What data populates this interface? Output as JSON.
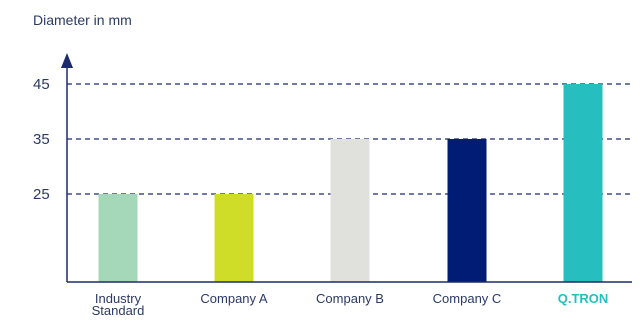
{
  "chart_data": {
    "type": "bar",
    "ylabel": "Diameter in mm",
    "categories": [
      "Industry Standard",
      "Company A",
      "Company B",
      "Company C",
      "Q.TRON"
    ],
    "category_lines": [
      [
        "Industry",
        "Standard"
      ],
      [
        "Company A"
      ],
      [
        "Company B"
      ],
      [
        "Company C"
      ],
      [
        "Q.TRON"
      ]
    ],
    "values": [
      25,
      25,
      35,
      35,
      45
    ],
    "bar_colors": [
      "#a5d8b9",
      "#cfdc28",
      "#e0e1dc",
      "#001c74",
      "#27bec0"
    ],
    "yticks": [
      25,
      35,
      45
    ],
    "ylim": [
      9,
      51
    ],
    "grid": "dashed horizontal at ticks",
    "highlight_category": "Q.TRON",
    "colors": {
      "axis": "#1b2b6b",
      "grid": "#1b2b6b",
      "text": "#2b3a67",
      "highlight": "#27bec0"
    }
  }
}
